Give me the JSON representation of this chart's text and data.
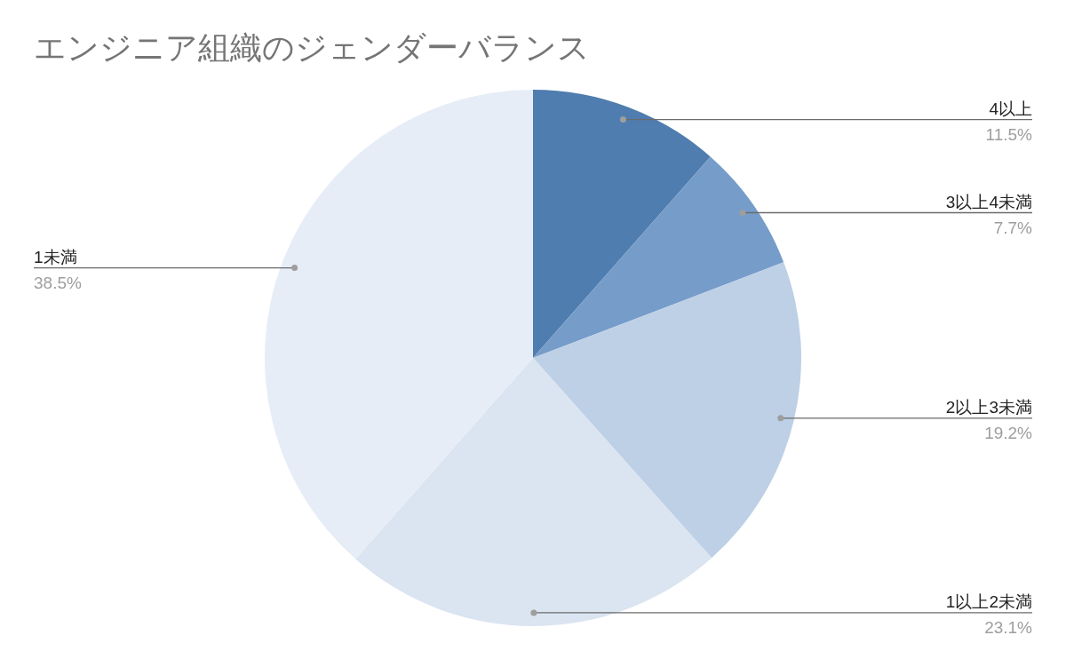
{
  "chart_data": {
    "type": "pie",
    "title": "エンジニア組織のジェンダーバランス",
    "categories": [
      "4以上",
      "3以上4未満",
      "2以上3未満",
      "1以上2未満",
      "1未満"
    ],
    "values": [
      11.5,
      7.7,
      19.2,
      23.1,
      38.5
    ],
    "value_labels": [
      "11.5%",
      "7.7%",
      "19.2%",
      "23.1%",
      "38.5%"
    ],
    "colors": [
      "#4f7daf",
      "#769cc9",
      "#bdd0e6",
      "#dbe4f1",
      "#e6edf6"
    ]
  }
}
